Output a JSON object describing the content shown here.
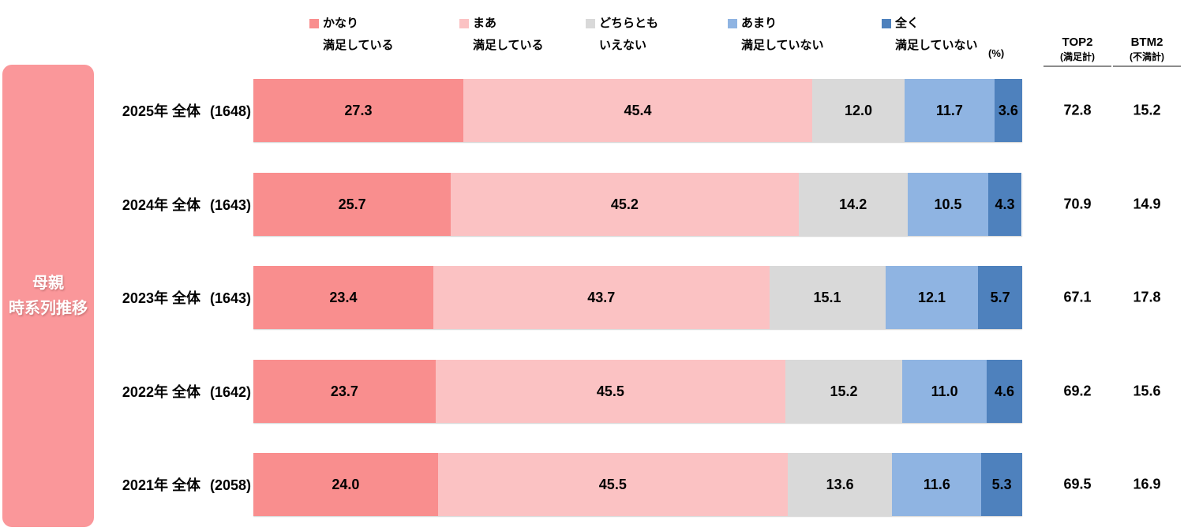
{
  "sidebar": {
    "line1": "母親",
    "line2": "時系列推移",
    "color": "#FA979A"
  },
  "percent_label": "(%)",
  "summary_columns": {
    "top2": {
      "title": "TOP2",
      "subtitle": "(満足計)"
    },
    "btm2": {
      "title": "BTM2",
      "subtitle": "(不満計)"
    }
  },
  "chart_data": {
    "type": "bar",
    "subtype": "horizontal-stacked-100pct",
    "unit": "%",
    "xlim": [
      0,
      100
    ],
    "legend_position": "top",
    "legend": [
      {
        "line1": "かなり",
        "line2": "満足している",
        "color": "#F98E8E"
      },
      {
        "line1": "まあ",
        "line2": "満足している",
        "color": "#FBC2C3"
      },
      {
        "line1": "どちらとも",
        "line2": "いえない",
        "color": "#D9D9D9"
      },
      {
        "line1": "あまり",
        "line2": "満足していない",
        "color": "#8FB4E2"
      },
      {
        "line1": "全く",
        "line2": "満足していない",
        "color": "#4E81BD"
      }
    ],
    "rows": [
      {
        "label": "2025年 全体",
        "n": "(1648)",
        "values": [
          27.3,
          45.4,
          12.0,
          11.7,
          3.6
        ],
        "top2": "72.8",
        "btm2": "15.2"
      },
      {
        "label": "2024年 全体",
        "n": "(1643)",
        "values": [
          25.7,
          45.2,
          14.2,
          10.5,
          4.3
        ],
        "top2": "70.9",
        "btm2": "14.9"
      },
      {
        "label": "2023年 全体",
        "n": "(1643)",
        "values": [
          23.4,
          43.7,
          15.1,
          12.1,
          5.7
        ],
        "top2": "67.1",
        "btm2": "17.8"
      },
      {
        "label": "2022年 全体",
        "n": "(1642)",
        "values": [
          23.7,
          45.5,
          15.2,
          11.0,
          4.6
        ],
        "top2": "69.2",
        "btm2": "15.6"
      },
      {
        "label": "2021年 全体",
        "n": "(2058)",
        "values": [
          24.0,
          45.5,
          13.6,
          11.6,
          5.3
        ],
        "top2": "69.5",
        "btm2": "16.9"
      }
    ]
  }
}
